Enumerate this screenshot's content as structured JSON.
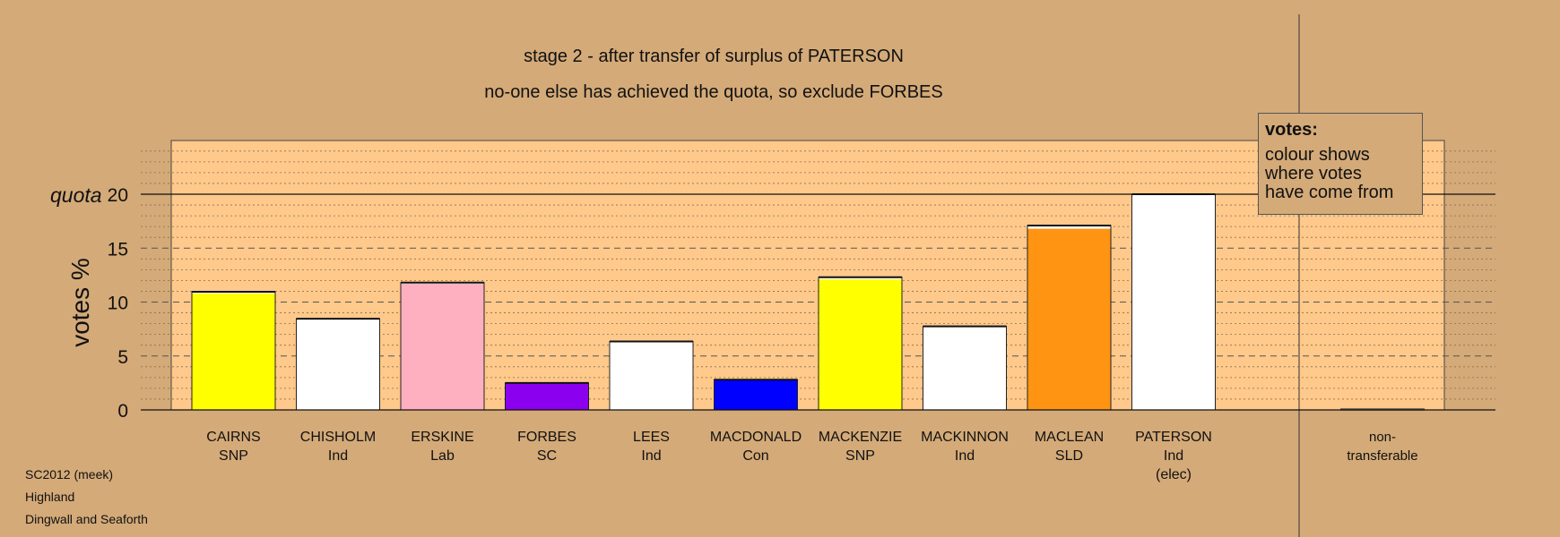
{
  "title_line1": "stage 2 - after transfer of surplus of PATERSON",
  "title_line2": "no-one else has achieved the quota, so exclude FORBES",
  "footer": [
    "SC2012 (meek)",
    "Highland",
    "Dingwall and Seaforth"
  ],
  "legend": {
    "title": "votes:",
    "lines": [
      "colour shows",
      "where votes",
      "have come from"
    ]
  },
  "colors": {
    "background": "#d4aa78",
    "plot_area": "#fec98b"
  },
  "chart_data": {
    "type": "bar",
    "ylabel": "votes %",
    "quota_label": "quota",
    "quota": 20,
    "ylim": [
      0,
      25
    ],
    "yticks": [
      0,
      5,
      10,
      15,
      20
    ],
    "grid": "dotted every 1%, dashed every 5%",
    "categories": [
      {
        "name": "CAIRNS",
        "party": "SNP",
        "note": ""
      },
      {
        "name": "CHISHOLM",
        "party": "Ind",
        "note": ""
      },
      {
        "name": "ERSKINE",
        "party": "Lab",
        "note": ""
      },
      {
        "name": "FORBES",
        "party": "SC",
        "note": ""
      },
      {
        "name": "LEES",
        "party": "Ind",
        "note": ""
      },
      {
        "name": "MACDONALD",
        "party": "Con",
        "note": ""
      },
      {
        "name": "MACKENZIE",
        "party": "SNP",
        "note": ""
      },
      {
        "name": "MACKINNON",
        "party": "Ind",
        "note": ""
      },
      {
        "name": "MACLEAN",
        "party": "SLD",
        "note": ""
      },
      {
        "name": "PATERSON",
        "party": "Ind",
        "note": "(elec)"
      }
    ],
    "series": [
      {
        "values": [
          10.8,
          8.3,
          11.7,
          2.5,
          6.2,
          2.8,
          12.1,
          7.6,
          16.8,
          20.0
        ],
        "colors": [
          "#ffff00",
          "#ffffff",
          "#ffb0c0",
          "#8b00ee",
          "#ffffff",
          "#0000ff",
          "#ffff00",
          "#ffffff",
          "#ff9412",
          "#ffffff"
        ]
      },
      {
        "values": [
          0.15,
          0.15,
          0.1,
          0.0,
          0.15,
          0.0,
          0.2,
          0.15,
          0.3,
          0.0
        ],
        "colors": [
          "#ffffff",
          "#ffffff",
          "#ffffff",
          "#ffffff",
          "#ffffff",
          "#ffffff",
          "#ffffff",
          "#ffffff",
          "#ffffff",
          "#ffffff"
        ]
      }
    ],
    "non_transferable": {
      "label_line1": "non-",
      "label_line2": "transferable",
      "value": 0.1
    }
  }
}
